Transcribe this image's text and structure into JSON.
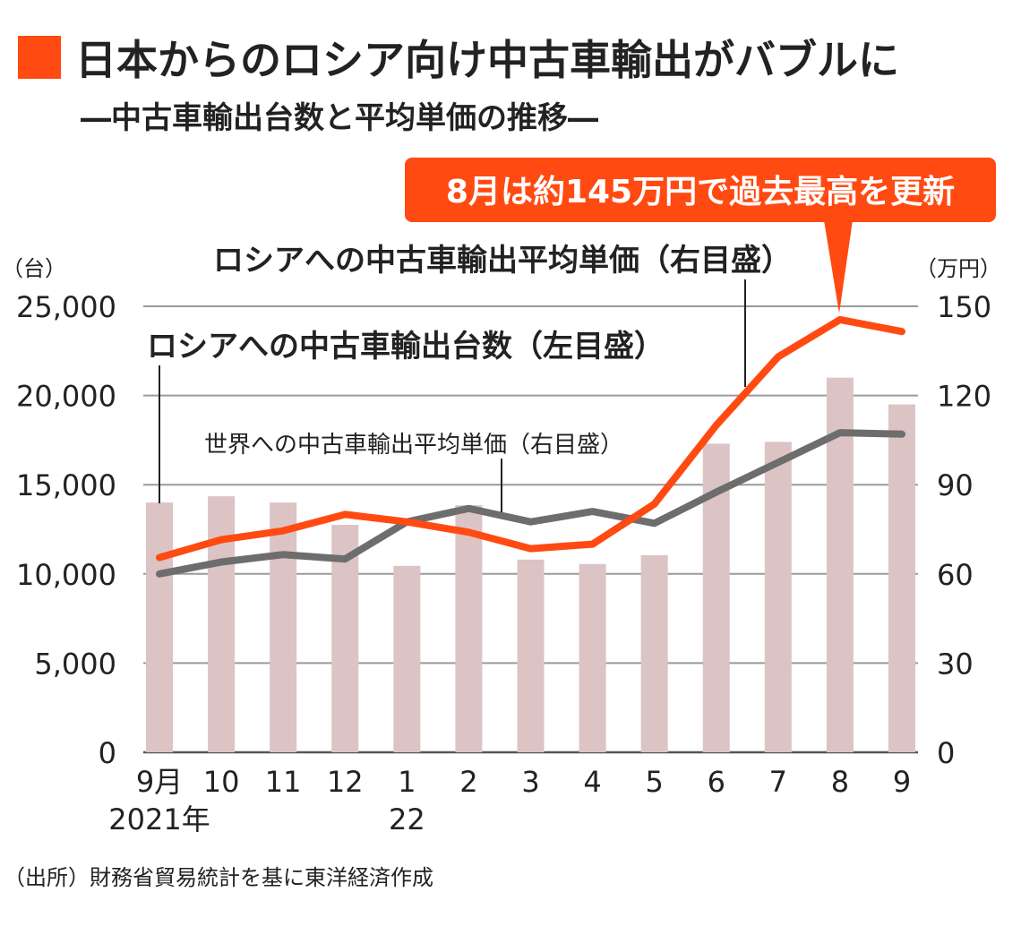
{
  "title": "日本からのロシア向け中古車輸出がバブルに",
  "subtitle": "―中古車輸出台数と平均単価の推移―",
  "source": "（出所）財務省貿易統計を基に東洋経済作成",
  "callout": "8月は約145万円で過去最高を更新",
  "colors": {
    "accent": "#ff4a12",
    "bar": "#dcc3c4",
    "world_line": "#6d6d6d",
    "grid": "#9a9a9a"
  },
  "chart_data": {
    "type": "bar+line",
    "categories": [
      "9月",
      "10",
      "11",
      "12",
      "1",
      "2",
      "3",
      "4",
      "5",
      "6",
      "7",
      "8",
      "9"
    ],
    "year_labels": [
      "2021年",
      "",
      "",
      "",
      "22",
      "",
      "",
      "",
      "",
      "",
      "",
      "",
      ""
    ],
    "left_axis": {
      "unit_label": "（台）",
      "ylim": [
        0,
        25000
      ],
      "ticks": [
        "0",
        "5,000",
        "10,000",
        "15,000",
        "20,000",
        "25,000"
      ]
    },
    "right_axis": {
      "unit_label": "（万円）",
      "ylim": [
        0,
        150
      ],
      "ticks": [
        "0",
        "30",
        "60",
        "90",
        "120",
        "150"
      ]
    },
    "grid": true,
    "series": [
      {
        "name": "ロシアへの中古車輸出台数（左目盛）",
        "type": "bar",
        "axis": "left",
        "values": [
          14000,
          14350,
          14000,
          12750,
          10450,
          13850,
          10800,
          10550,
          11050,
          17300,
          17400,
          21000,
          19500
        ]
      },
      {
        "name": "ロシアへの中古車輸出平均単価（右目盛）",
        "type": "line",
        "axis": "right",
        "values": [
          65.5,
          71.5,
          74.5,
          80,
          77.5,
          74,
          68.5,
          70,
          83.5,
          110,
          133,
          145.5,
          141.5
        ]
      },
      {
        "name": "世界への中古車輸出平均単価（右目盛）",
        "type": "line",
        "axis": "right",
        "values": [
          60,
          64,
          66.5,
          65,
          77.5,
          82,
          77.5,
          81,
          77,
          87.5,
          97.5,
          107.5,
          107
        ]
      }
    ]
  }
}
